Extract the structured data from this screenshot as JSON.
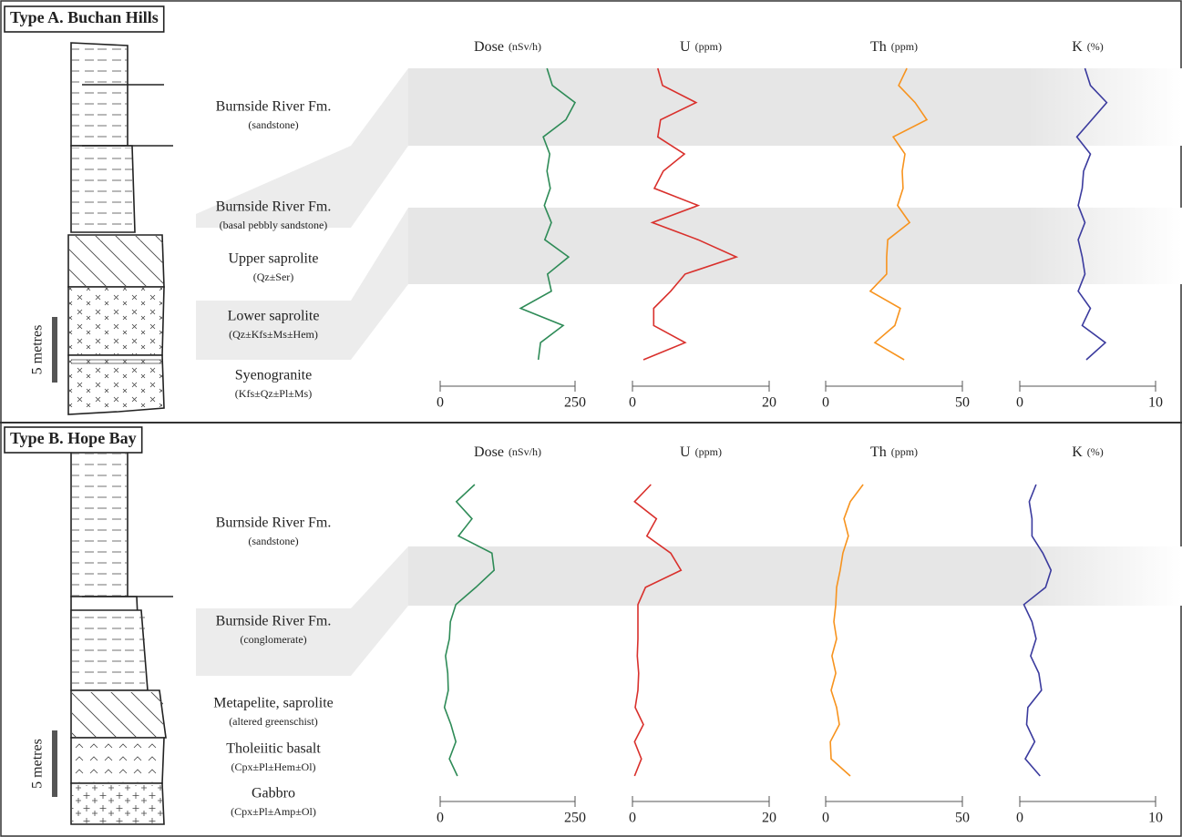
{
  "panels": [
    {
      "title": "Type A. Buchan Hills",
      "scale_label": "5 metres",
      "layers": [
        {
          "name": "Burnside River Fm.",
          "detail": "(sandstone)"
        },
        {
          "name": "Burnside River Fm.",
          "detail": "(basal pebbly sandstone)"
        },
        {
          "name": "Upper saprolite",
          "detail": "(Qz±Ser)"
        },
        {
          "name": "Lower saprolite",
          "detail": "(Qz±Kfs±Ms±Hem)"
        },
        {
          "name": "Syenogranite",
          "detail": "(Kfs±Qz±Pl±Ms)"
        }
      ]
    },
    {
      "title": "Type B. Hope Bay",
      "scale_label": "5 metres",
      "layers": [
        {
          "name": "Burnside River Fm.",
          "detail": "(sandstone)"
        },
        {
          "name": "Burnside River Fm.",
          "detail": "(conglomerate)"
        },
        {
          "name": "Metapelite, saprolite",
          "detail": "(altered greenschist)"
        },
        {
          "name": "Tholeiitic basalt",
          "detail": "(Cpx±Pl±Hem±Ol)"
        },
        {
          "name": "Gabbro",
          "detail": "(Cpx±Pl±Amp±Ol)"
        }
      ]
    }
  ],
  "chart_data": [
    {
      "type": "line",
      "title": "Dose",
      "subtitle": "(nSv/h)",
      "xlim": [
        0,
        250
      ],
      "xticks": [
        0,
        250
      ],
      "color": "#2e8b57",
      "values": [
        198,
        208,
        250,
        233,
        191,
        203,
        198,
        204,
        193,
        206,
        194,
        238,
        199,
        206,
        149,
        228,
        186,
        182
      ]
    },
    {
      "type": "line",
      "title": "U",
      "subtitle": "(ppm)",
      "xlim": [
        0,
        20
      ],
      "xticks": [
        0,
        20
      ],
      "color": "#d9302c",
      "values": [
        3.7,
        4.4,
        9.3,
        4.1,
        3.7,
        7.6,
        4.5,
        3.2,
        9.6,
        2.9,
        9.6,
        15.2,
        7.7,
        5.6,
        3.1,
        3.1,
        7.7,
        1.6
      ]
    },
    {
      "type": "line",
      "title": "Th",
      "subtitle": "(ppm)",
      "xlim": [
        0,
        50
      ],
      "xticks": [
        0,
        50
      ],
      "color": "#f7931e",
      "values": [
        29.7,
        26.7,
        32.7,
        37,
        24.7,
        29,
        28,
        28.3,
        26.3,
        30.7,
        22.7,
        22.3,
        22.3,
        16.3,
        27.3,
        25.3,
        18,
        28.7
      ]
    },
    {
      "type": "line",
      "title": "K",
      "subtitle": "(%)",
      "xlim": [
        0,
        10
      ],
      "xticks": [
        0,
        10
      ],
      "color": "#3b3b9e",
      "values": [
        4.8,
        5.2,
        6.4,
        5.3,
        4.2,
        5.2,
        4.7,
        4.6,
        4.3,
        4.8,
        4.3,
        4.6,
        4.8,
        4.3,
        5.2,
        4.6,
        6.3,
        4.9
      ]
    },
    {
      "type": "line",
      "title": "Dose",
      "subtitle": "(nSv/h)",
      "xlim": [
        0,
        250
      ],
      "xticks": [
        0,
        250
      ],
      "color": "#2e8b57",
      "values": [
        64,
        30,
        59,
        34,
        96,
        100,
        66,
        29,
        19,
        17,
        10,
        14,
        15,
        8,
        20,
        29,
        17,
        32
      ]
    },
    {
      "type": "line",
      "title": "U",
      "subtitle": "(ppm)",
      "xlim": [
        0,
        20
      ],
      "xticks": [
        0,
        20
      ],
      "color": "#d9302c",
      "values": [
        2.7,
        0.3,
        3.5,
        2.1,
        5.6,
        7.1,
        1.9,
        0.8,
        0.8,
        0.8,
        0.7,
        0.9,
        0.8,
        0.4,
        1.6,
        0.3,
        1.3,
        0.3
      ]
    },
    {
      "type": "line",
      "title": "Th",
      "subtitle": "(ppm)",
      "xlim": [
        0,
        50
      ],
      "xticks": [
        0,
        50
      ],
      "color": "#f7931e",
      "values": [
        13.7,
        9,
        6.7,
        8.3,
        6.3,
        5.3,
        4,
        3.7,
        3,
        4,
        2.3,
        3.7,
        2,
        4,
        5,
        1.7,
        2,
        9
      ]
    },
    {
      "type": "line",
      "title": "K",
      "subtitle": "(%)",
      "xlim": [
        0,
        10
      ],
      "xticks": [
        0,
        10
      ],
      "color": "#3b3b9e",
      "values": [
        1.2,
        0.7,
        0.9,
        0.9,
        1.7,
        2.3,
        1.9,
        0.3,
        0.9,
        1.2,
        0.8,
        1.4,
        1.6,
        0.6,
        0.5,
        1.1,
        0.4,
        1.5
      ]
    }
  ]
}
